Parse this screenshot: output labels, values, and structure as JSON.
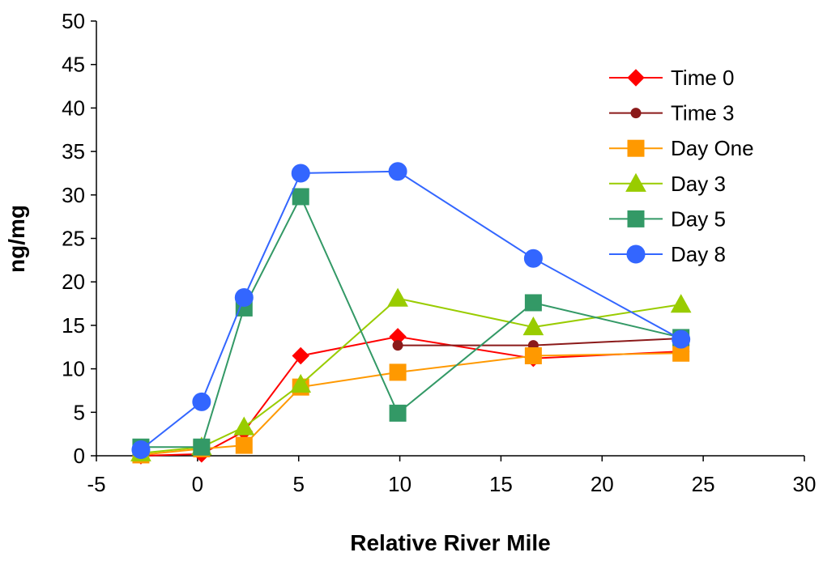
{
  "chart_data": {
    "type": "line",
    "title": "",
    "xlabel": "Relative River Mile",
    "ylabel": "ng/mg",
    "xlim": [
      -5,
      30
    ],
    "ylim": [
      0,
      50
    ],
    "x_ticks": [
      -5,
      0,
      5,
      10,
      15,
      20,
      25,
      30
    ],
    "y_ticks": [
      0,
      5,
      10,
      15,
      20,
      25,
      30,
      35,
      40,
      45,
      50
    ],
    "grid": false,
    "legend_position": "top-right",
    "series": [
      {
        "name": "Time 0",
        "color": "#FF0000",
        "marker": "diamond",
        "points": [
          [
            -2.8,
            0.0
          ],
          [
            0.2,
            0.2
          ],
          [
            2.3,
            2.8
          ],
          [
            5.1,
            11.5
          ],
          [
            9.9,
            13.7
          ],
          [
            16.6,
            11.2
          ],
          [
            23.9,
            12.0
          ]
        ]
      },
      {
        "name": "Time 3",
        "color": "#8B1A1A",
        "marker": "circle-small",
        "points": [
          [
            9.9,
            12.7
          ],
          [
            16.6,
            12.7
          ],
          [
            23.9,
            13.5
          ]
        ]
      },
      {
        "name": "Day One",
        "color": "#FF9900",
        "marker": "square",
        "points": [
          [
            -2.8,
            0.1
          ],
          [
            0.2,
            0.8
          ],
          [
            2.3,
            1.2
          ],
          [
            5.1,
            7.9
          ],
          [
            9.9,
            9.6
          ],
          [
            16.6,
            11.5
          ],
          [
            23.9,
            11.8
          ]
        ]
      },
      {
        "name": "Day 3",
        "color": "#99CC00",
        "marker": "triangle",
        "points": [
          [
            -2.8,
            0.3
          ],
          [
            0.2,
            1.0
          ],
          [
            2.3,
            3.3
          ],
          [
            5.1,
            8.2
          ],
          [
            9.9,
            18.1
          ],
          [
            16.6,
            14.8
          ],
          [
            23.9,
            17.4
          ]
        ]
      },
      {
        "name": "Day 5",
        "color": "#339966",
        "marker": "square",
        "points": [
          [
            -2.8,
            1.0
          ],
          [
            0.2,
            1.0
          ],
          [
            2.3,
            17.0
          ],
          [
            5.1,
            29.8
          ],
          [
            9.9,
            4.9
          ],
          [
            16.6,
            17.6
          ],
          [
            23.9,
            13.6
          ]
        ]
      },
      {
        "name": "Day 8",
        "color": "#3366FF",
        "marker": "circle",
        "points": [
          [
            -2.8,
            0.7
          ],
          [
            0.2,
            6.2
          ],
          [
            2.3,
            18.2
          ],
          [
            5.1,
            32.5
          ],
          [
            9.9,
            32.7
          ],
          [
            16.6,
            22.7
          ],
          [
            23.9,
            13.4
          ]
        ]
      }
    ]
  }
}
